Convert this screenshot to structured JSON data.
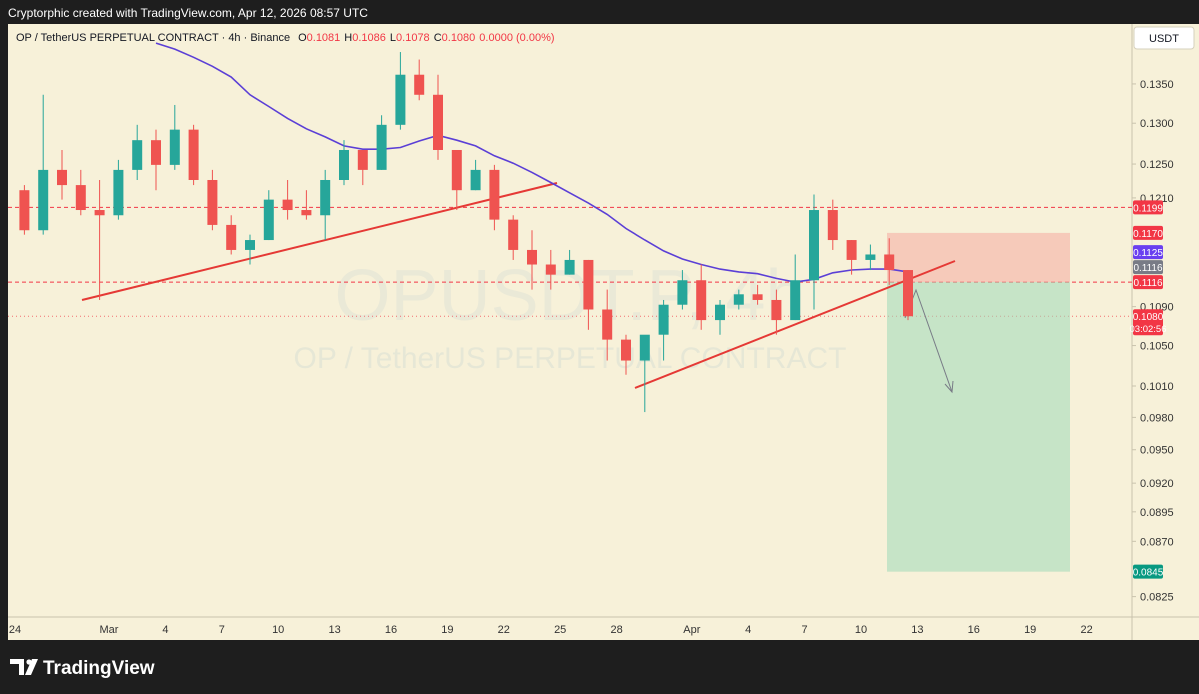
{
  "header": {
    "credit": "Cryptorphic created with TradingView.com, Apr 12, 2026 08:57 UTC",
    "symbol": "OP / TetherUS PERPETUAL CONTRACT · 4h · Binance",
    "ohlc": [
      {
        "letter": "O",
        "value": "0.1081"
      },
      {
        "letter": "H",
        "value": "0.1086"
      },
      {
        "letter": "L",
        "value": "0.1078"
      },
      {
        "letter": "C",
        "value": "0.1080"
      }
    ],
    "change": "0.0000 (0.00%)"
  },
  "currency": "USDT",
  "brand": "TradingView",
  "chart_data": {
    "type": "candlestick",
    "watermark": [
      "OPUSDT.P, 4h",
      "OP / TetherUS PERPETUAL CONTRACT"
    ],
    "categories": [
      "24",
      null,
      null,
      null,
      null,
      "Mar",
      null,
      null,
      "4",
      null,
      null,
      "7",
      null,
      null,
      "10",
      null,
      null,
      "13",
      null,
      null,
      "16",
      null,
      null,
      "19",
      null,
      null,
      "22",
      null,
      null,
      "25",
      null,
      null,
      "28",
      null,
      null,
      null,
      "Apr",
      null,
      null,
      "4",
      null,
      null,
      "7",
      null,
      null,
      "10",
      null,
      null,
      "13",
      null,
      null,
      "16",
      null,
      null,
      "19",
      null,
      null,
      "22",
      null
    ],
    "open": [
      0.1219,
      0.1173,
      0.1243,
      0.1225,
      0.1196,
      0.119,
      0.1243,
      0.1279,
      0.1249,
      0.1292,
      0.1231,
      0.1179,
      0.1151,
      0.1162,
      0.1208,
      0.1196,
      0.119,
      0.1231,
      0.1267,
      0.1243,
      0.1298,
      0.1362,
      0.1336,
      0.1267,
      0.1219,
      0.1243,
      0.1185,
      0.1151,
      0.1135,
      0.1124,
      0.114,
      0.1087,
      0.1056,
      0.1035,
      0.1061,
      0.1092,
      0.1118,
      0.1076,
      0.1092,
      0.1103,
      0.1097,
      0.1076,
      0.1118,
      0.1196,
      0.1162,
      0.114,
      0.1146,
      0.1129,
      null,
      null,
      null,
      null,
      null,
      null,
      null,
      null,
      null,
      null,
      null
    ],
    "high": [
      0.1225,
      0.1336,
      0.1267,
      0.1243,
      0.1231,
      0.1255,
      0.1298,
      0.1292,
      0.1323,
      0.1298,
      0.1243,
      0.119,
      0.1168,
      0.1219,
      0.1231,
      0.1219,
      0.1243,
      0.1279,
      0.1267,
      0.131,
      0.1392,
      0.1382,
      0.1362,
      0.1267,
      0.1255,
      0.1249,
      0.119,
      0.1173,
      0.1151,
      0.1151,
      0.114,
      0.1108,
      0.1061,
      0.1056,
      0.1097,
      0.1129,
      0.1135,
      0.1097,
      0.1108,
      0.1113,
      0.1108,
      0.1146,
      0.1214,
      0.1208,
      0.1162,
      0.1157,
      0.1164,
      0.1129,
      null,
      null,
      null,
      null,
      null,
      null,
      null,
      null,
      null,
      null,
      null
    ],
    "low": [
      0.1168,
      0.1168,
      0.1208,
      0.119,
      0.1097,
      0.1185,
      0.1231,
      0.1219,
      0.1243,
      0.1225,
      0.1173,
      0.1146,
      0.1135,
      0.1162,
      0.1185,
      0.1185,
      0.1162,
      0.1225,
      0.1225,
      0.1243,
      0.1292,
      0.1329,
      0.1255,
      0.1196,
      0.1219,
      0.1173,
      0.114,
      0.1108,
      0.1108,
      0.1124,
      0.1066,
      0.1035,
      0.1021,
      0.0985,
      0.1035,
      0.1087,
      0.1066,
      0.1061,
      0.1087,
      0.1092,
      0.1061,
      0.1076,
      0.1087,
      0.1151,
      0.1124,
      0.1129,
      0.1113,
      0.1076,
      null,
      null,
      null,
      null,
      null,
      null,
      null,
      null,
      null,
      null,
      null
    ],
    "close": [
      0.1173,
      0.1243,
      0.1225,
      0.1196,
      0.119,
      0.1243,
      0.1279,
      0.1249,
      0.1292,
      0.1231,
      0.1179,
      0.1151,
      0.1162,
      0.1208,
      0.1196,
      0.119,
      0.1231,
      0.1267,
      0.1243,
      0.1298,
      0.1362,
      0.1336,
      0.1267,
      0.1219,
      0.1243,
      0.1185,
      0.1151,
      0.1135,
      0.1124,
      0.114,
      0.1087,
      0.1056,
      0.1035,
      0.1061,
      0.1092,
      0.1118,
      0.1076,
      0.1092,
      0.1103,
      0.1097,
      0.1076,
      0.1118,
      0.1196,
      0.1162,
      0.114,
      0.1146,
      0.1129,
      0.108,
      null,
      null,
      null,
      null,
      null,
      null,
      null,
      null,
      null,
      null,
      null
    ],
    "up_color": "#26a69a",
    "down_color": "#ef5350",
    "ma": {
      "color": "#5b3fd6",
      "values": [
        null,
        null,
        null,
        null,
        null,
        null,
        null,
        0.1404,
        0.1396,
        0.1385,
        0.1373,
        0.1359,
        0.1336,
        0.1321,
        0.1306,
        0.1293,
        0.1283,
        0.1272,
        0.1268,
        0.1268,
        0.127,
        0.1278,
        0.1285,
        0.1279,
        0.1272,
        0.126,
        0.1251,
        0.124,
        0.1228,
        0.1216,
        0.1204,
        0.1191,
        0.1175,
        0.1162,
        0.115,
        0.1141,
        0.1135,
        0.113,
        0.1127,
        0.1125,
        0.112,
        0.1116,
        0.1119,
        0.1126,
        0.1129,
        0.113,
        0.113,
        0.1127,
        null,
        null,
        null,
        null,
        null,
        null,
        null,
        null,
        null,
        null,
        null
      ]
    },
    "log_scale": true,
    "ylim": [
      0.0809,
      0.143
    ],
    "yticks": [
      {
        "value": 0.135,
        "label": "0.1350"
      },
      {
        "value": 0.13,
        "label": "0.1300"
      },
      {
        "value": 0.125,
        "label": "0.1250"
      },
      {
        "value": 0.121,
        "label": "0.1210"
      },
      {
        "value": 0.109,
        "label": "0.1090"
      },
      {
        "value": 0.105,
        "label": "0.1050"
      },
      {
        "value": 0.101,
        "label": "0.1010"
      },
      {
        "value": 0.098,
        "label": "0.0980"
      },
      {
        "value": 0.095,
        "label": "0.0950"
      },
      {
        "value": 0.092,
        "label": "0.0920"
      },
      {
        "value": 0.0895,
        "label": "0.0895"
      },
      {
        "value": 0.087,
        "label": "0.0870"
      },
      {
        "value": 0.0825,
        "label": "0.0825"
      }
    ],
    "grid": false,
    "price_labels": [
      {
        "value": 0.1199,
        "label": "0.1199",
        "color": "#f23645",
        "line": "dashed"
      },
      {
        "value": 0.117,
        "label": "0.1170",
        "color": "#f23645"
      },
      {
        "value": 0.1125,
        "label": "0.1125",
        "color": "#6a3ff0"
      },
      {
        "value": 0.1116,
        "label": "0.1116",
        "color": "#787b86"
      },
      {
        "value": 0.1116,
        "label": "0.1116",
        "color": "#f23645",
        "line": "dashed"
      },
      {
        "value": 0.108,
        "label": "0.1080",
        "sub": "03:02:56",
        "color": "#f23645",
        "line": "dotted"
      },
      {
        "value": 0.0845,
        "label": "0.0845",
        "color": "#089981"
      }
    ]
  }
}
